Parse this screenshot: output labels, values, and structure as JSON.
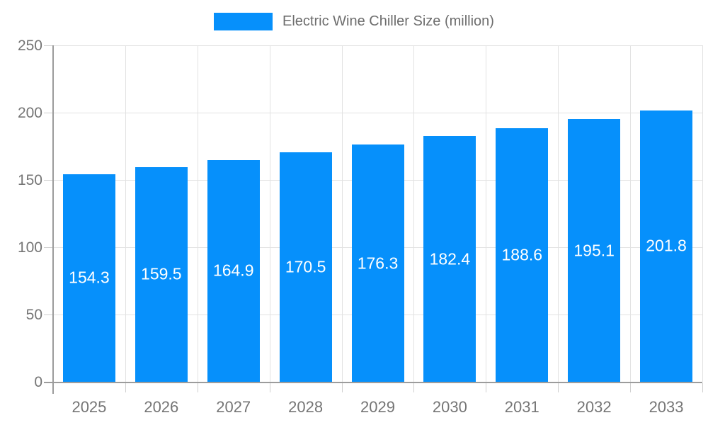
{
  "legend": {
    "label": "Electric Wine Chiller Size (million)",
    "swatch_color": "#0690fb"
  },
  "chart_data": {
    "type": "bar",
    "title": "Electric Wine Chiller Size (million)",
    "categories": [
      "2025",
      "2026",
      "2027",
      "2028",
      "2029",
      "2030",
      "2031",
      "2032",
      "2033"
    ],
    "values": [
      154.3,
      159.5,
      164.9,
      170.5,
      176.3,
      182.4,
      188.6,
      195.1,
      201.8
    ],
    "ylim": [
      0,
      250
    ],
    "yticks": [
      0,
      50,
      100,
      150,
      200,
      250
    ],
    "xlabel": "",
    "ylabel": "",
    "legend_position": "top-center",
    "grid": true,
    "bar_color": "#0690fb",
    "value_label_color": "#ffffff",
    "axis_text_color": "#757575",
    "title_text_color": "#6d6d6d"
  }
}
